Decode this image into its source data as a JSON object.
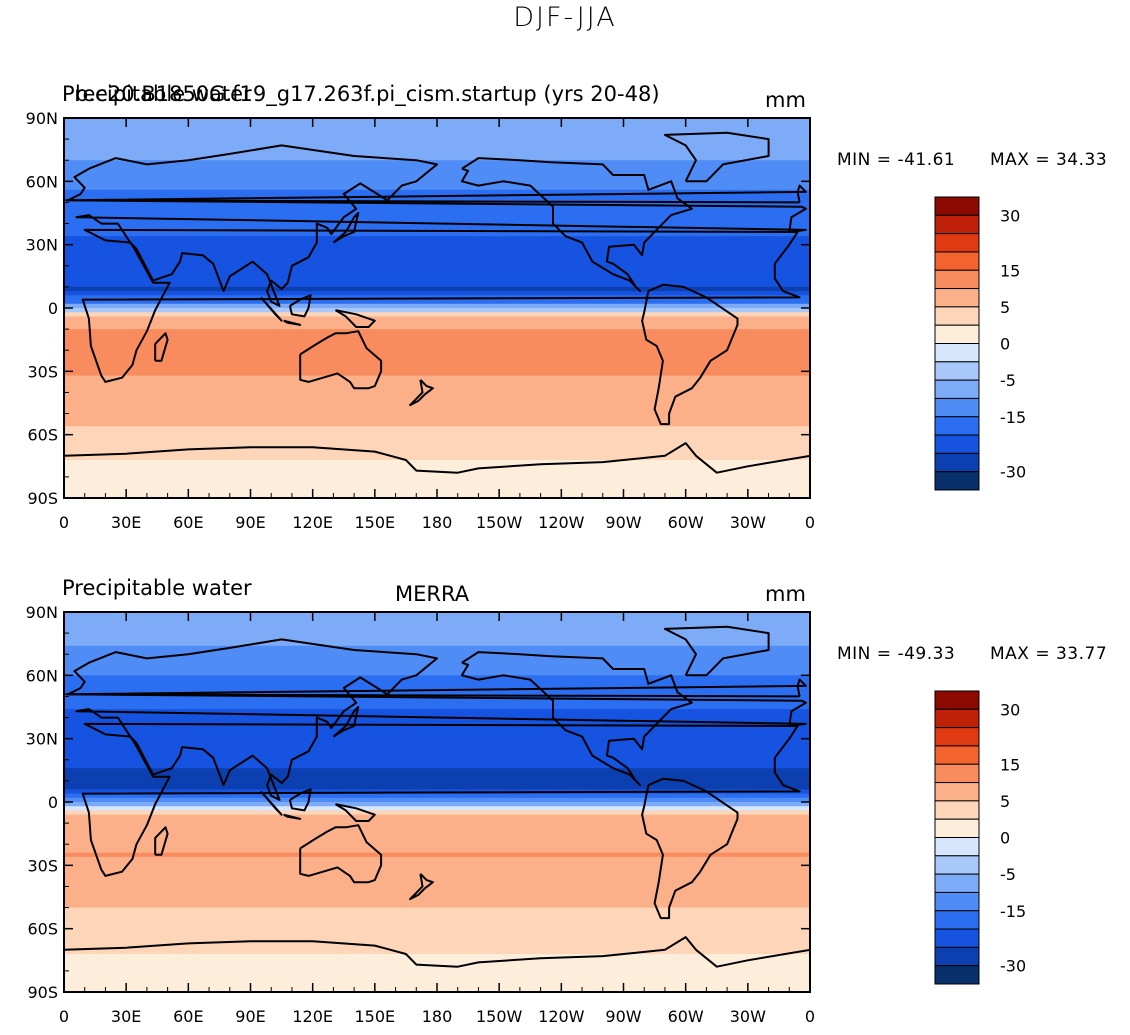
{
  "figure_title": "DJF-JJA",
  "colors": {
    "levels": [
      "#08306b",
      "#0c3fb0",
      "#1553e0",
      "#2b6ef2",
      "#4f8cf5",
      "#7dabf7",
      "#a9c8fa",
      "#d6e6fc",
      "#fdeedb",
      "#fdd5b8",
      "#fcb08a",
      "#f98c5f",
      "#f3632f",
      "#e03a12",
      "#bf2008",
      "#8c0a02"
    ]
  },
  "charts": [
    {
      "id": "model",
      "left_title": "Precipitable water",
      "center_title": "b.e20.B1850G.f19_g17.263f.pi_cism.startup (yrs 20-48)",
      "units": "mm",
      "min_label": "MIN = -41.61",
      "max_label": "MAX =  34.33"
    },
    {
      "id": "merra",
      "left_title": "Precipitable water",
      "center_title": "MERRA",
      "units": "mm",
      "min_label": "MIN = -49.33",
      "max_label": "MAX =  33.77"
    }
  ],
  "chart_data": [
    {
      "type": "heatmap",
      "title": "b.e20.B1850G.f19_g17.263f.pi_cism.startup (yrs 20-48)",
      "variable": "Precipitable water",
      "units": "mm",
      "season_difference": "DJF-JJA",
      "min": -41.61,
      "max": 34.33,
      "xlim": [
        0,
        360
      ],
      "ylim": [
        -90,
        90
      ],
      "x_ticks": [
        "0",
        "30E",
        "60E",
        "90E",
        "120E",
        "150E",
        "180",
        "150W",
        "120W",
        "90W",
        "60W",
        "30W",
        "0"
      ],
      "y_ticks": [
        "90N",
        "60N",
        "30N",
        "0",
        "30S",
        "60S",
        "90S"
      ],
      "colorbar_levels": [
        -35,
        -30,
        -25,
        -20,
        -15,
        -10,
        -5,
        -2,
        0,
        2,
        5,
        10,
        15,
        20,
        25,
        30,
        35
      ],
      "colorbar_labels": [
        "30",
        "15",
        "5",
        "0",
        "-5",
        "-15",
        "-30"
      ],
      "lat_profile": {
        "lat": [
          90,
          70,
          50,
          35,
          20,
          8,
          3,
          -5,
          -15,
          -25,
          -35,
          -50,
          -65,
          -80,
          -90
        ],
        "value": [
          -6,
          -10,
          -17,
          -20,
          -22,
          -26,
          -16,
          8,
          12,
          12,
          9,
          6,
          3,
          1,
          1
        ]
      }
    },
    {
      "type": "heatmap",
      "title": "MERRA",
      "variable": "Precipitable water",
      "units": "mm",
      "season_difference": "DJF-JJA",
      "min": -49.33,
      "max": 33.77,
      "xlim": [
        0,
        360
      ],
      "ylim": [
        -90,
        90
      ],
      "x_ticks": [
        "0",
        "30E",
        "60E",
        "90E",
        "120E",
        "150E",
        "180",
        "150W",
        "120W",
        "90W",
        "60W",
        "30W",
        "0"
      ],
      "y_ticks": [
        "90N",
        "60N",
        "30N",
        "0",
        "30S",
        "60S",
        "90S"
      ],
      "colorbar_levels": [
        -35,
        -30,
        -25,
        -20,
        -15,
        -10,
        -5,
        -2,
        0,
        2,
        5,
        10,
        15,
        20,
        25,
        30,
        35
      ],
      "colorbar_labels": [
        "30",
        "15",
        "5",
        "0",
        "-5",
        "-15",
        "-30"
      ],
      "lat_profile": {
        "lat": [
          90,
          70,
          50,
          35,
          20,
          8,
          3,
          -5,
          -15,
          -25,
          -35,
          -50,
          -65,
          -80,
          -90
        ],
        "value": [
          -6,
          -11,
          -19,
          -22,
          -24,
          -28,
          -18,
          4,
          9,
          10,
          7,
          5,
          3,
          1,
          1
        ]
      }
    }
  ]
}
